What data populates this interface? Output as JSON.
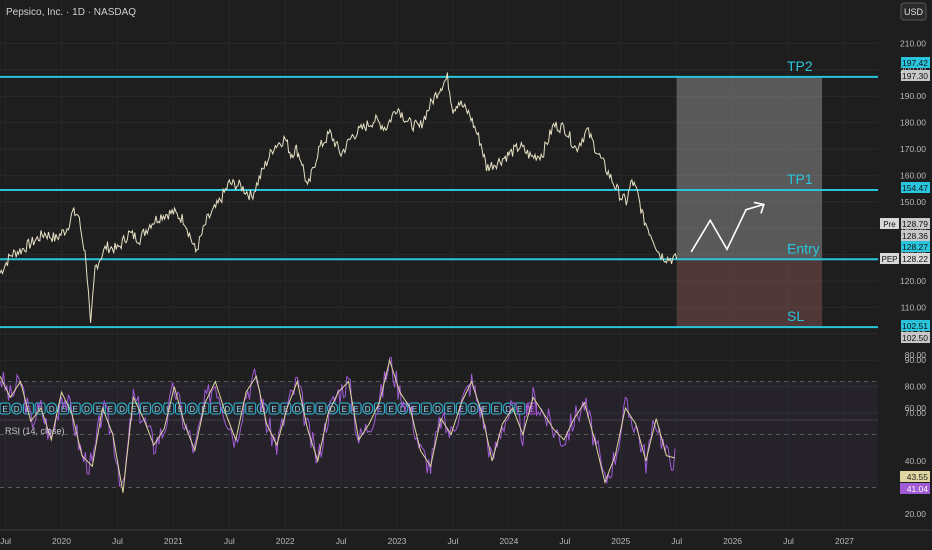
{
  "header": {
    "symbol_title": "Pepsico, Inc. · 1D · NASDAQ",
    "currency_button": "USD",
    "rsi_title": "RSI (14, close)"
  },
  "colors": {
    "background": "#1e1e1e",
    "price_line": "#e6e0c4",
    "level_line": "#29c5dc",
    "tp_zone": "#8a8a8a",
    "sl_zone": "#7a4e4e",
    "rsi_line": "#a05bd6",
    "rsi_ma": "#e0d7a0",
    "earnings_badge_border": "#29c5dc",
    "earnings_last_border": "#b05bd6"
  },
  "chart_data": [
    {
      "type": "line",
      "title": "Pepsico, Inc. · 1D · NASDAQ",
      "xlabel": "",
      "ylabel": "",
      "ylim": [
        67,
        218
      ],
      "xlim": [
        2019.45,
        2027.3
      ],
      "yticks": [
        70,
        80,
        90,
        100,
        110,
        120,
        130,
        140,
        150,
        160,
        170,
        180,
        190,
        200,
        210
      ],
      "ytick_labels": [
        "70.00",
        "80.00",
        "90.00",
        "100.00",
        "110.00",
        "120.00",
        "130.00",
        "140.00",
        "150.00",
        "160.00",
        "170.00",
        "180.00",
        "190.00",
        "200.00",
        "210.00"
      ],
      "xticks": [
        {
          "label": "Jul",
          "x": 2019.5
        },
        {
          "label": "2020",
          "x": 2020.0
        },
        {
          "label": "Jul",
          "x": 2020.5
        },
        {
          "label": "2021",
          "x": 2021.0
        },
        {
          "label": "Jul",
          "x": 2021.5
        },
        {
          "label": "2022",
          "x": 2022.0
        },
        {
          "label": "Jul",
          "x": 2022.5
        },
        {
          "label": "2023",
          "x": 2023.0
        },
        {
          "label": "Jul",
          "x": 2023.5
        },
        {
          "label": "2024",
          "x": 2024.0
        },
        {
          "label": "Jul",
          "x": 2024.5
        },
        {
          "label": "2025",
          "x": 2025.0
        },
        {
          "label": "Jul",
          "x": 2025.5
        },
        {
          "label": "2026",
          "x": 2026.0
        },
        {
          "label": "Jul",
          "x": 2026.5
        },
        {
          "label": "2027",
          "x": 2027.0
        }
      ],
      "series": [
        {
          "name": "PEP",
          "x": [
            2019.45,
            2019.55,
            2019.65,
            2019.75,
            2019.85,
            2019.95,
            2020.05,
            2020.1,
            2020.15,
            2020.22,
            2020.26,
            2020.3,
            2020.4,
            2020.5,
            2020.6,
            2020.7,
            2020.8,
            2020.9,
            2021.0,
            2021.1,
            2021.2,
            2021.3,
            2021.4,
            2021.5,
            2021.6,
            2021.7,
            2021.8,
            2021.9,
            2022.0,
            2022.05,
            2022.1,
            2022.15,
            2022.2,
            2022.3,
            2022.4,
            2022.5,
            2022.6,
            2022.7,
            2022.8,
            2022.9,
            2023.0,
            2023.1,
            2023.2,
            2023.3,
            2023.38,
            2023.45,
            2023.5,
            2023.55,
            2023.65,
            2023.75,
            2023.8,
            2023.9,
            2024.0,
            2024.1,
            2024.2,
            2024.3,
            2024.4,
            2024.5,
            2024.6,
            2024.7,
            2024.8,
            2024.9,
            2025.0,
            2025.05,
            2025.1,
            2025.15,
            2025.2,
            2025.3,
            2025.35,
            2025.42,
            2025.5
          ],
          "values": [
            123,
            130,
            132,
            135,
            138,
            136,
            140,
            146,
            145,
            128,
            102,
            125,
            133,
            132,
            138,
            136,
            142,
            145,
            146,
            143,
            131,
            143,
            149,
            157,
            156,
            152,
            162,
            171,
            174,
            168,
            170,
            165,
            155,
            170,
            176,
            168,
            175,
            178,
            181,
            178,
            186,
            180,
            178,
            187,
            193,
            197,
            185,
            188,
            183,
            172,
            163,
            165,
            168,
            171,
            167,
            168,
            179,
            178,
            170,
            177,
            168,
            160,
            152,
            150,
            158,
            153,
            144,
            135,
            130,
            128.5,
            128.22
          ]
        }
      ],
      "levels": [
        {
          "name": "TP2",
          "value": 197.3
        },
        {
          "name": "TP1",
          "value": 154.47
        },
        {
          "name": "Entry",
          "value": 128.22
        },
        {
          "name": "SL",
          "value": 102.51
        }
      ],
      "zones": [
        {
          "name": "target",
          "x_range": [
            2025.5,
            2026.8
          ],
          "y_range": [
            128.22,
            197.3
          ]
        },
        {
          "name": "stop",
          "x_range": [
            2025.5,
            2026.8
          ],
          "y_range": [
            102.51,
            128.22
          ]
        }
      ],
      "projection": {
        "x": [
          2025.63,
          2025.8,
          2025.95,
          2026.12,
          2026.28
        ],
        "y": [
          131,
          143,
          132,
          147,
          149
        ]
      },
      "price_labels": [
        {
          "value": "197.42"
        },
        {
          "value": "197.30"
        },
        {
          "value": "154.47"
        },
        {
          "value": "128.79",
          "tag": "Pre"
        },
        {
          "value": "128.36"
        },
        {
          "value": "128.27"
        },
        {
          "value": "128.22",
          "tag": "PEP"
        },
        {
          "value": "102.51"
        },
        {
          "value": "102.50"
        }
      ],
      "earnings_markers": [
        "E",
        "D",
        "E",
        "E",
        "D",
        "E",
        "E",
        "D",
        "E",
        "E",
        "D",
        "E",
        "E",
        "D",
        "E",
        "E",
        "D",
        "E",
        "E",
        "D",
        "E",
        "E",
        "D",
        "E",
        "E",
        "D",
        "E",
        "E",
        "D",
        "E",
        "E",
        "D",
        "E",
        "E",
        "D",
        "E",
        "E",
        "D",
        "E",
        "E",
        "D",
        "E",
        "E",
        "D",
        "E",
        "E"
      ]
    },
    {
      "type": "line",
      "title": "RSI (14, close)",
      "ylim": [
        15,
        85
      ],
      "yticks": [
        20,
        40,
        60,
        80
      ],
      "ytick_labels": [
        "20.00",
        "40.00",
        "60.00",
        "80.00"
      ],
      "bands": [
        30,
        50,
        70
      ],
      "series": [
        {
          "name": "RSI",
          "last_value": "41.04"
        },
        {
          "name": "RSI MA",
          "last_value": "43.55"
        }
      ],
      "rsi_values": [
        72,
        64,
        70,
        55,
        60,
        48,
        66,
        58,
        42,
        38,
        60,
        50,
        28,
        64,
        56,
        46,
        52,
        68,
        54,
        44,
        62,
        70,
        58,
        48,
        66,
        72,
        54,
        46,
        60,
        70,
        52,
        40,
        58,
        66,
        70,
        48,
        54,
        62,
        78,
        66,
        60,
        44,
        38,
        56,
        50,
        62,
        70,
        58,
        40,
        54,
        60,
        50,
        64,
        58,
        52,
        48,
        56,
        62,
        48,
        32,
        42,
        60,
        54,
        40,
        56,
        42,
        41
      ]
    }
  ]
}
